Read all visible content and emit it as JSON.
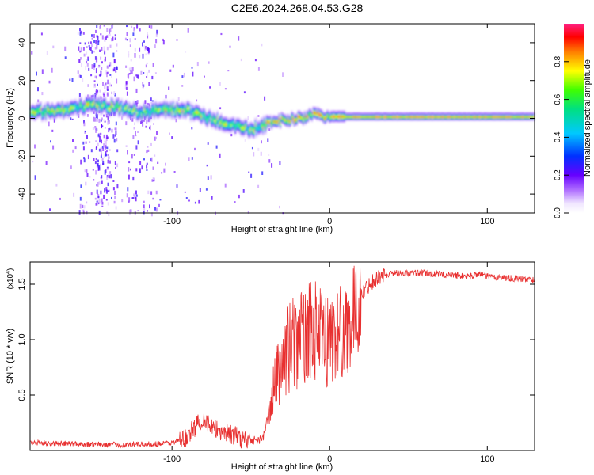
{
  "title": "C2E6.2024.268.04.53.G28",
  "colors": {
    "snr_line": "#e83030",
    "axis": "#000000",
    "background": "#ffffff"
  },
  "chart_data": [
    {
      "type": "heatmap",
      "xlabel": "Height of straight line (km)",
      "ylabel": "Frequency (Hz)",
      "xlim": [
        -190,
        130
      ],
      "ylim": [
        -50,
        50
      ],
      "xticks": [
        -100,
        0,
        100
      ],
      "yticks": [
        -40,
        -20,
        0,
        20,
        40
      ],
      "colorbar": {
        "label": "Normalized spectral amplitude",
        "range": [
          0,
          1
        ],
        "ticks": [
          0.0,
          0.2,
          0.4,
          0.6,
          0.8
        ],
        "colormap": "rainbow (white-violet-blue-cyan-green-yellow-red-magenta)"
      },
      "ridge": {
        "x": [
          -190,
          -165,
          -150,
          -135,
          -120,
          -105,
          -90,
          -80,
          -70,
          -60,
          -50,
          -40,
          -35,
          -30,
          -20,
          -10,
          0,
          20,
          50,
          100,
          130
        ],
        "frequency": [
          3,
          5,
          7,
          6,
          3,
          5,
          4,
          1,
          -2,
          -4,
          -6,
          -3,
          -1,
          -1,
          0,
          2,
          1,
          1,
          1,
          1,
          1
        ]
      }
    },
    {
      "type": "line",
      "xlabel": "Height of straight line (km)",
      "ylabel": "SNR (10 * v/v)",
      "y_multiplier": "(x10",
      "y_multiplier_exponent": "4",
      "y_multiplier_close": ")",
      "xlim": [
        -190,
        130
      ],
      "ylim": [
        0,
        1.7
      ],
      "xticks": [
        -100,
        0,
        100
      ],
      "yticks": [
        0.5,
        1.0,
        1.5
      ],
      "series": [
        {
          "name": "SNR",
          "x": [
            -190,
            -160,
            -130,
            -110,
            -100,
            -92,
            -85,
            -80,
            -75,
            -65,
            -55,
            -45,
            -42,
            -38,
            -35,
            -30,
            -25,
            -20,
            -15,
            -10,
            -5,
            0,
            5,
            10,
            15,
            20,
            25,
            30,
            35,
            40,
            50,
            60,
            70,
            80,
            90,
            95,
            100,
            110,
            120,
            130
          ],
          "values": [
            0.06,
            0.05,
            0.04,
            0.05,
            0.06,
            0.1,
            0.22,
            0.3,
            0.2,
            0.16,
            0.1,
            0.08,
            0.12,
            0.35,
            0.6,
            0.8,
            0.95,
            1.0,
            1.05,
            1.1,
            1.0,
            1.0,
            1.05,
            1.1,
            1.2,
            1.4,
            1.5,
            1.56,
            1.58,
            1.6,
            1.6,
            1.6,
            1.59,
            1.58,
            1.57,
            1.6,
            1.57,
            1.56,
            1.55,
            1.54
          ]
        }
      ]
    }
  ]
}
